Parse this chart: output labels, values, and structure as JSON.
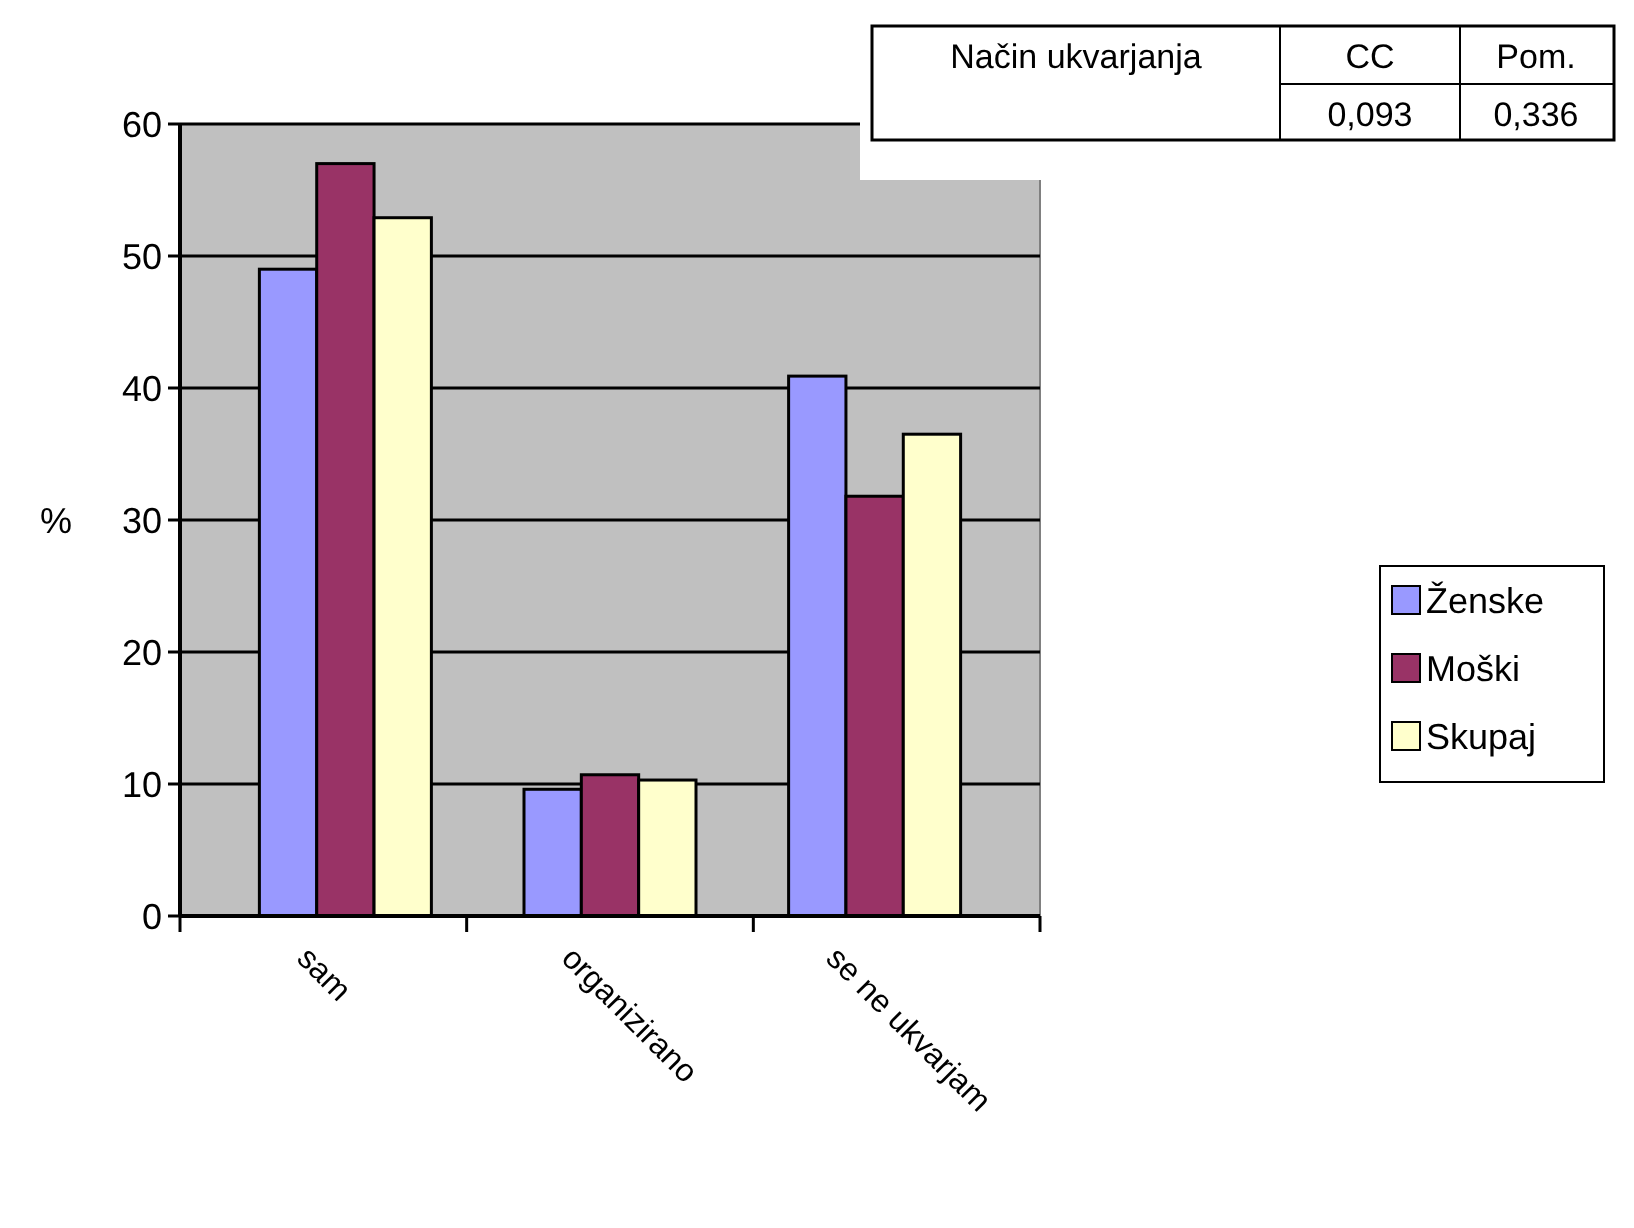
{
  "chart_data": {
    "type": "bar",
    "ylabel": "%",
    "categories": [
      "sam",
      "organizirano",
      "se ne ukvarjam"
    ],
    "series": [
      {
        "name": "Ženske",
        "color": "#9999ff",
        "values": [
          49,
          9.6,
          40.9
        ]
      },
      {
        "name": "Moški",
        "color": "#993366",
        "values": [
          57,
          10.7,
          31.8
        ]
      },
      {
        "name": "Skupaj",
        "color": "#ffffcc",
        "values": [
          52.9,
          10.3,
          36.5
        ]
      }
    ],
    "ylim": [
      0,
      60
    ],
    "yticks": [
      0,
      10,
      20,
      30,
      40,
      50,
      60
    ],
    "grid": "y",
    "legend": "right",
    "annotations": [
      "Način ukvarjanja",
      "CC",
      "Pom.",
      "0,093",
      "0,336"
    ]
  }
}
